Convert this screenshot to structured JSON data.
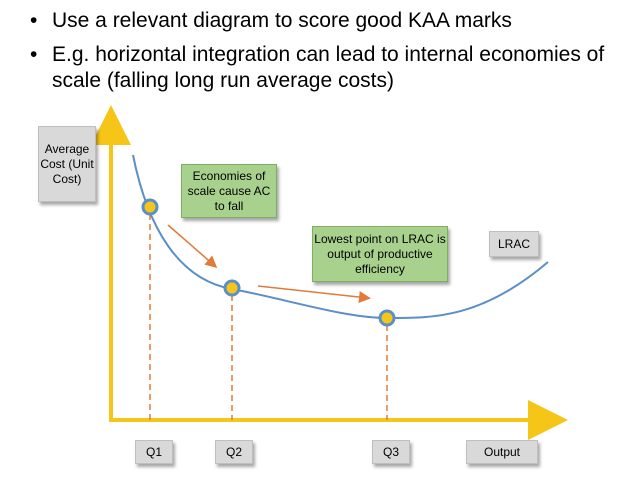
{
  "bullets": [
    "Use a relevant diagram to score good KAA marks",
    "E.g. horizontal integration can lead to internal economies of scale (falling long run average costs)"
  ],
  "diagram": {
    "y_axis_label": "Average Cost (Unit Cost)",
    "x_axis_label": "Output",
    "curve_label": "LRAC",
    "quantities": [
      "Q1",
      "Q2",
      "Q3"
    ],
    "callout_economies": "Economies of scale cause AC to fall",
    "callout_lowest": "Lowest point on LRAC is output of productive efficiency",
    "colors": {
      "axis": "#f5c518",
      "curve": "#5b8fc7",
      "point_fill": "#f5c518",
      "point_ring": "#5b8fc7",
      "dashed": "#e07b39",
      "arrow": "#e07b39",
      "grey_box": "#d9d9d9",
      "green_box": "#a9d18e"
    }
  }
}
